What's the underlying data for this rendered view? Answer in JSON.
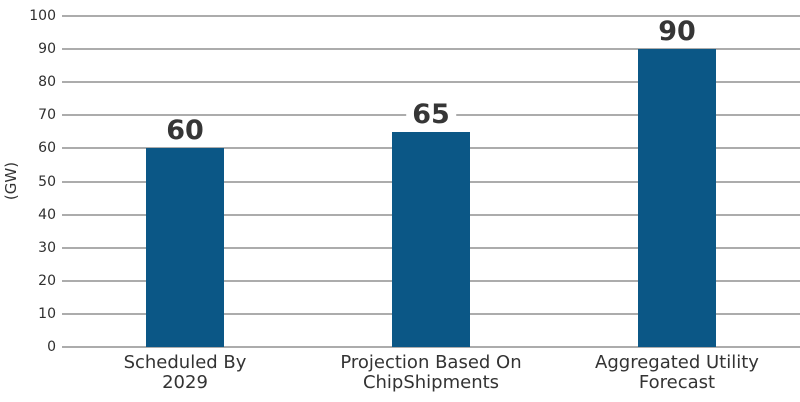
{
  "chart_data": {
    "type": "bar",
    "title": "",
    "xlabel": "",
    "ylabel": "(GW)",
    "categories": [
      "Scheduled By\n2029",
      "Projection Based On\nChipShipments",
      "Aggregated Utility\nForecast"
    ],
    "values": [
      60,
      65,
      90
    ],
    "value_labels": [
      "60",
      "65",
      "90"
    ],
    "ylim": [
      0,
      100
    ],
    "yticks": [
      0,
      10,
      20,
      30,
      40,
      50,
      60,
      70,
      80,
      90,
      100
    ],
    "grid": "horizontal",
    "legend": "none",
    "bar_color": "#0b5786",
    "grid_color": "#acacac",
    "text_color": "#333333"
  }
}
